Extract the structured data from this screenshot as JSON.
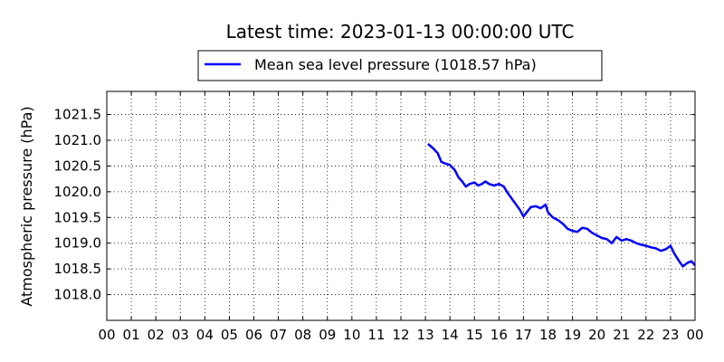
{
  "chart_data": {
    "type": "line",
    "title": "Latest time: 2023-01-13 00:00:00 UTC",
    "xlabel": "",
    "ylabel": "Atmospheric pressure (hPa)",
    "xlim": [
      0,
      24
    ],
    "ylim": [
      1017.5,
      1021.95
    ],
    "x_tick_values": [
      0,
      1,
      2,
      3,
      4,
      5,
      6,
      7,
      8,
      9,
      10,
      11,
      12,
      13,
      14,
      15,
      16,
      17,
      18,
      19,
      20,
      21,
      22,
      23,
      24
    ],
    "x_tick_labels": [
      "00",
      "01",
      "02",
      "03",
      "04",
      "05",
      "06",
      "07",
      "08",
      "09",
      "10",
      "11",
      "12",
      "13",
      "14",
      "15",
      "16",
      "17",
      "18",
      "19",
      "20",
      "21",
      "22",
      "23",
      "00"
    ],
    "y_tick_values": [
      1018.0,
      1018.5,
      1019.0,
      1019.5,
      1020.0,
      1020.5,
      1021.0,
      1021.5
    ],
    "y_tick_labels": [
      "1018.0",
      "1018.5",
      "1019.0",
      "1019.5",
      "1020.0",
      "1020.5",
      "1021.0",
      "1021.5"
    ],
    "grid": true,
    "legend_position": "top-center",
    "series": [
      {
        "name": "Mean sea level pressure (1018.57 hPa)",
        "color": "#0000ff",
        "x": [
          13.1,
          13.3,
          13.5,
          13.65,
          13.8,
          14.0,
          14.2,
          14.35,
          14.5,
          14.65,
          14.8,
          15.0,
          15.15,
          15.3,
          15.45,
          15.6,
          15.8,
          16.0,
          16.2,
          16.35,
          16.5,
          16.7,
          16.85,
          17.0,
          17.1,
          17.3,
          17.5,
          17.7,
          17.9,
          18.0,
          18.2,
          18.4,
          18.6,
          18.8,
          19.0,
          19.2,
          19.4,
          19.6,
          19.8,
          20.0,
          20.2,
          20.4,
          20.6,
          20.8,
          21.0,
          21.2,
          21.4,
          21.6,
          21.8,
          22.0,
          22.2,
          22.4,
          22.6,
          22.8,
          23.0,
          23.15,
          23.35,
          23.5,
          23.7,
          23.85,
          24.0
        ],
        "y": [
          1020.93,
          1020.85,
          1020.75,
          1020.58,
          1020.55,
          1020.52,
          1020.42,
          1020.28,
          1020.2,
          1020.1,
          1020.15,
          1020.18,
          1020.12,
          1020.15,
          1020.2,
          1020.15,
          1020.12,
          1020.15,
          1020.1,
          1019.98,
          1019.88,
          1019.75,
          1019.65,
          1019.52,
          1019.58,
          1019.7,
          1019.72,
          1019.68,
          1019.75,
          1019.6,
          1019.5,
          1019.45,
          1019.38,
          1019.28,
          1019.24,
          1019.22,
          1019.3,
          1019.28,
          1019.2,
          1019.15,
          1019.1,
          1019.08,
          1019.0,
          1019.12,
          1019.05,
          1019.08,
          1019.05,
          1019.0,
          1018.97,
          1018.95,
          1018.92,
          1018.9,
          1018.85,
          1018.88,
          1018.95,
          1018.8,
          1018.65,
          1018.55,
          1018.62,
          1018.65,
          1018.57
        ]
      }
    ]
  }
}
